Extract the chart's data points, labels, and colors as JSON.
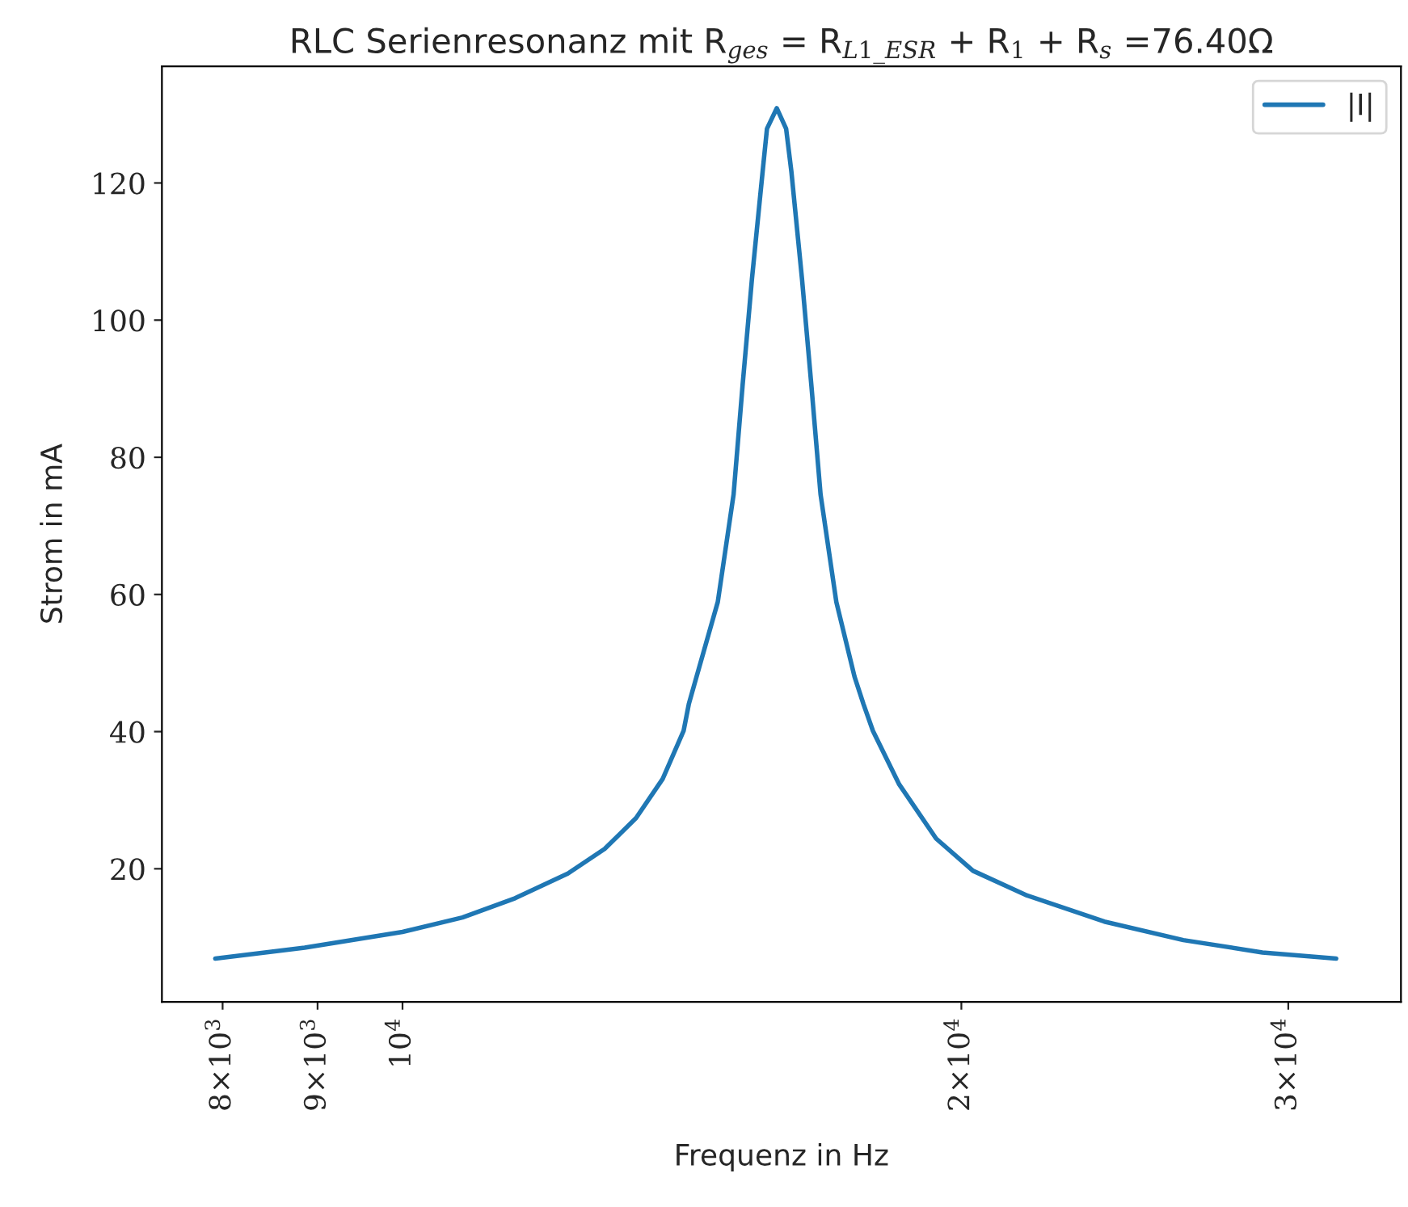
{
  "chart_data": {
    "type": "line",
    "title": "RLC Serienresonanz mit R$_{ges}$ = R$_{L1_ESR}$ + R$_{1}$ + R$_{s}$ =76.40Ω",
    "xlabel": "Frequenz in Hz",
    "ylabel": "Strom in mA",
    "x": [
      7928,
      8857,
      10000,
      10772,
      11498,
      12276,
      12849,
      13360,
      13808,
      14171,
      14263,
      14400,
      14785,
      15078,
      15245,
      15425,
      15630,
      15715,
      15907,
      16093,
      16199,
      16413,
      16607,
      16795,
      17127,
      17518,
      17714,
      17923,
      18516,
      19384,
      20292,
      21652,
      23880,
      26338,
      29054,
      31836
    ],
    "series": [
      {
        "name": "|I|",
        "color": "#1f77b4",
        "values": [
          6.9,
          8.5,
          10.8,
          12.9,
          15.7,
          19.3,
          22.9,
          27.4,
          33.1,
          40.1,
          44.0,
          48.0,
          58.9,
          74.6,
          90.3,
          106.0,
          121.6,
          127.9,
          130.9,
          127.9,
          121.6,
          106.0,
          90.3,
          74.6,
          58.9,
          48.0,
          44.0,
          40.1,
          32.3,
          24.4,
          19.7,
          16.2,
          12.3,
          9.6,
          7.8,
          6.9
        ]
      }
    ],
    "log": "x",
    "xlim": [
      7420,
      34500
    ],
    "ylim": [
      0.6,
      137.0
    ],
    "xticks": [
      {
        "value": 8000,
        "label": "8×10$^{3}$"
      },
      {
        "value": 9000,
        "label": "9×10$^{3}$"
      },
      {
        "value": 10000,
        "label": "10$^{4}$"
      },
      {
        "value": 20000,
        "label": "2×10$^{4}$"
      },
      {
        "value": 30000,
        "label": "3×10$^{4}$"
      }
    ],
    "yticks": [
      20,
      40,
      60,
      80,
      100,
      120
    ],
    "grid": false,
    "legend": "top right",
    "marker": "none",
    "line_style": "solid"
  }
}
